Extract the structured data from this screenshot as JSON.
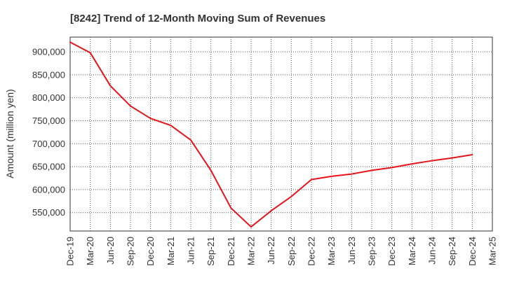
{
  "chart_data": {
    "type": "line",
    "title": "[8242]  Trend of 12-Month Moving Sum of Revenues",
    "xlabel": "",
    "ylabel": "Amount (million yen)",
    "x_ticks": [
      "Dec-19",
      "Mar-20",
      "Jun-20",
      "Sep-20",
      "Dec-20",
      "Mar-21",
      "Jun-21",
      "Sep-21",
      "Dec-21",
      "Mar-22",
      "Jun-22",
      "Sep-22",
      "Dec-22",
      "Mar-23",
      "Jun-23",
      "Sep-23",
      "Dec-23",
      "Mar-24",
      "Jun-24",
      "Sep-24",
      "Dec-24",
      "Mar-25"
    ],
    "y_ticks": [
      550000,
      600000,
      650000,
      700000,
      750000,
      800000,
      850000,
      900000
    ],
    "y_tick_labels": [
      "550,000",
      "600,000",
      "650,000",
      "700,000",
      "750,000",
      "800,000",
      "850,000",
      "900,000"
    ],
    "ylim": [
      510000,
      932000
    ],
    "grid": true,
    "series": [
      {
        "color": "#e8141b",
        "x": [
          "Dec-19",
          "Mar-20",
          "Jun-20",
          "Sep-20",
          "Dec-20",
          "Mar-21",
          "Jun-21",
          "Sep-21",
          "Dec-21",
          "Mar-22",
          "Jun-22",
          "Sep-22",
          "Dec-22",
          "Mar-23",
          "Jun-23",
          "Sep-23",
          "Dec-23",
          "Mar-24",
          "Jun-24",
          "Sep-24",
          "Dec-24"
        ],
        "values": [
          921000,
          898000,
          826000,
          782000,
          755000,
          740000,
          708000,
          642000,
          560000,
          519000,
          554000,
          585000,
          622000,
          629000,
          634000,
          642000,
          648000,
          656000,
          663000,
          669000,
          676000
        ]
      }
    ]
  }
}
